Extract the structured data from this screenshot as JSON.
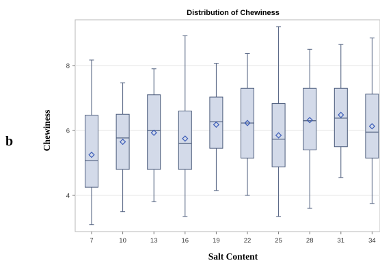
{
  "panel_label": "b",
  "chart_data": {
    "type": "box",
    "title": "Distribution of Chewiness",
    "xlabel": "Salt Content",
    "ylabel": "Chewiness",
    "categories": [
      "7",
      "10",
      "13",
      "16",
      "19",
      "22",
      "25",
      "28",
      "31",
      "34"
    ],
    "yticks": [
      4,
      6,
      8
    ],
    "ylim": [
      2.9,
      9.3
    ],
    "grid": true,
    "boxes": [
      {
        "min": 3.1,
        "q1": 4.25,
        "median": 5.07,
        "q3": 6.47,
        "max": 8.17,
        "mean": 5.25
      },
      {
        "min": 3.5,
        "q1": 4.8,
        "median": 5.77,
        "q3": 6.5,
        "max": 7.47,
        "mean": 5.65
      },
      {
        "min": 3.8,
        "q1": 4.8,
        "median": 6.0,
        "q3": 7.1,
        "max": 7.9,
        "mean": 5.93
      },
      {
        "min": 3.35,
        "q1": 4.8,
        "median": 5.6,
        "q3": 6.6,
        "max": 8.92,
        "mean": 5.75
      },
      {
        "min": 4.15,
        "q1": 5.45,
        "median": 6.27,
        "q3": 7.03,
        "max": 8.07,
        "mean": 6.18
      },
      {
        "min": 4.0,
        "q1": 5.15,
        "median": 6.23,
        "q3": 7.3,
        "max": 8.37,
        "mean": 6.23
      },
      {
        "min": 3.35,
        "q1": 4.88,
        "median": 5.73,
        "q3": 6.83,
        "max": 9.2,
        "mean": 5.85
      },
      {
        "min": 3.6,
        "q1": 5.4,
        "median": 6.3,
        "q3": 7.3,
        "max": 8.5,
        "mean": 6.32
      },
      {
        "min": 4.55,
        "q1": 5.5,
        "median": 6.38,
        "q3": 7.3,
        "max": 8.65,
        "mean": 6.48
      },
      {
        "min": 3.75,
        "q1": 5.15,
        "median": 5.95,
        "q3": 7.12,
        "max": 8.85,
        "mean": 6.13
      }
    ],
    "colors": {
      "box_fill": "#d3dae9",
      "box_stroke": "#4a5a7a",
      "mean_marker": "#3b5cb8",
      "grid": "#e6e6e6",
      "frame": "#b8b8b8"
    }
  }
}
